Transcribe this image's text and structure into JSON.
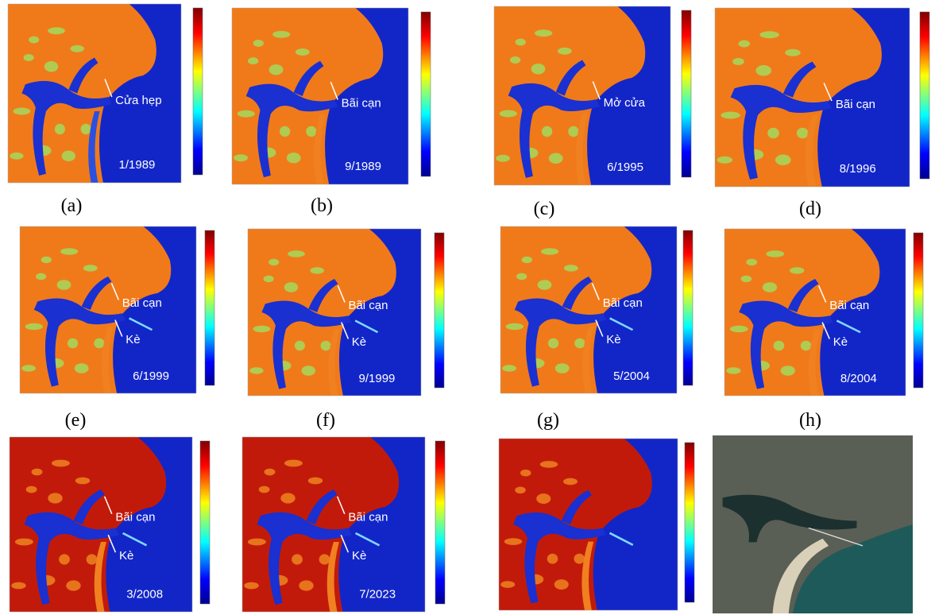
{
  "panels": [
    {
      "label": "(a)",
      "date": "1/1989",
      "annotations": [
        "Cửa hẹp"
      ]
    },
    {
      "label": "(b)",
      "date": "9/1989",
      "annotations": [
        "Bãi cạn"
      ]
    },
    {
      "label": "(c)",
      "date": "6/1995",
      "annotations": [
        "Mở cửa"
      ]
    },
    {
      "label": "(d)",
      "date": "8/1996",
      "annotations": [
        "Bãi cạn"
      ]
    },
    {
      "label": "(e)",
      "date": "6/1999",
      "annotations": [
        "Bãi cạn",
        "Kè"
      ]
    },
    {
      "label": "(f)",
      "date": "9/1999",
      "annotations": [
        "Bãi cạn",
        "Kè"
      ]
    },
    {
      "label": "(g)",
      "date": "5/2004",
      "annotations": [
        "Bãi cạn",
        "Kè"
      ]
    },
    {
      "label": "(h)",
      "date": "8/2004",
      "annotations": [
        "Bãi cạn",
        "Kè"
      ]
    },
    {
      "date": "3/2008",
      "annotations": [
        "Bãi cạn",
        "Kè"
      ]
    },
    {
      "date": "7/2023",
      "annotations": [
        "Bãi cạn",
        "Kè"
      ]
    }
  ]
}
